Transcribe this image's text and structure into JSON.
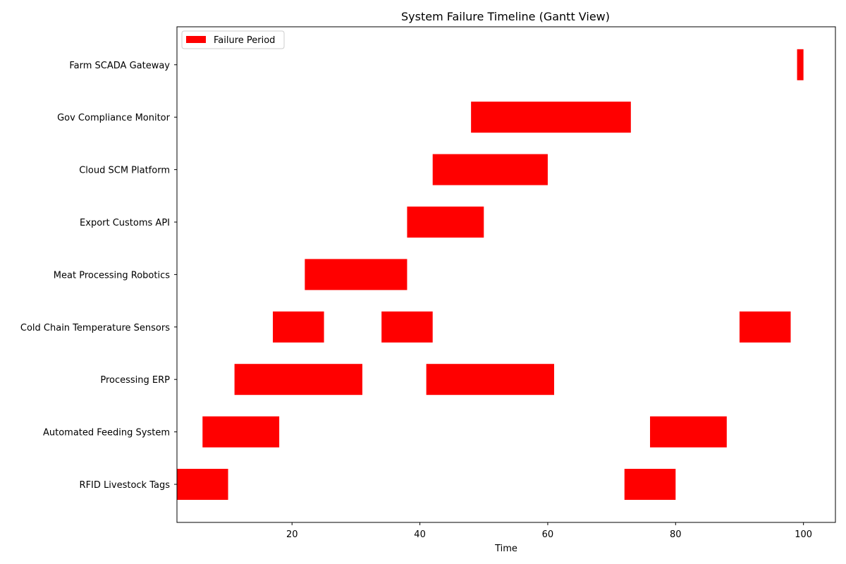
{
  "chart_data": {
    "type": "bar",
    "orientation": "horizontal",
    "title": "System Failure Timeline (Gantt View)",
    "xlabel": "Time",
    "ylabel": "",
    "xlim": [
      2,
      105
    ],
    "x_ticks": [
      20,
      40,
      60,
      80,
      100
    ],
    "grid": false,
    "legend": {
      "position": "upper-left",
      "entries": [
        "Failure Period"
      ]
    },
    "bar_color": "#ff0000",
    "categories": [
      "RFID Livestock Tags",
      "Automated Feeding System",
      "Processing ERP",
      "Cold Chain Temperature Sensors",
      "Meat Processing Robotics",
      "Export Customs API",
      "Cloud SCM Platform",
      "Gov Compliance Monitor",
      "Farm SCADA Gateway"
    ],
    "series": [
      {
        "name": "Failure Period",
        "intervals": [
          {
            "system": "RFID Livestock Tags",
            "start": 2,
            "end": 10
          },
          {
            "system": "RFID Livestock Tags",
            "start": 72,
            "end": 80
          },
          {
            "system": "Automated Feeding System",
            "start": 6,
            "end": 18
          },
          {
            "system": "Automated Feeding System",
            "start": 76,
            "end": 88
          },
          {
            "system": "Processing ERP",
            "start": 11,
            "end": 31
          },
          {
            "system": "Processing ERP",
            "start": 41,
            "end": 61
          },
          {
            "system": "Cold Chain Temperature Sensors",
            "start": 17,
            "end": 25
          },
          {
            "system": "Cold Chain Temperature Sensors",
            "start": 34,
            "end": 42
          },
          {
            "system": "Cold Chain Temperature Sensors",
            "start": 90,
            "end": 98
          },
          {
            "system": "Meat Processing Robotics",
            "start": 22,
            "end": 38
          },
          {
            "system": "Export Customs API",
            "start": 38,
            "end": 50
          },
          {
            "system": "Cloud SCM Platform",
            "start": 42,
            "end": 60
          },
          {
            "system": "Gov Compliance Monitor",
            "start": 48,
            "end": 73
          },
          {
            "system": "Farm SCADA Gateway",
            "start": 99,
            "end": 100
          }
        ]
      }
    ]
  }
}
